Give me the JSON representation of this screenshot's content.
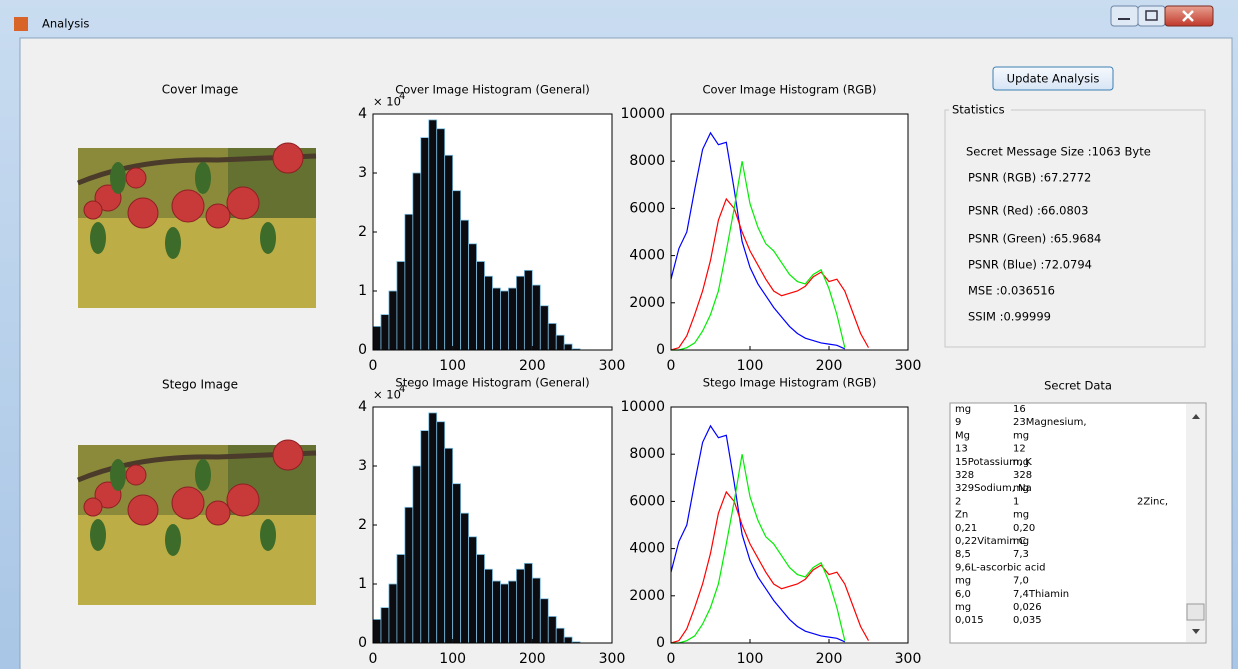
{
  "window": {
    "title": "Analysis"
  },
  "cover": {
    "label": "Cover Image"
  },
  "stego": {
    "label": "Stego Image"
  },
  "button": "Update Analysis",
  "statistics": {
    "title": "Statistics",
    "lines": [
      {
        "text": "Secret Message Size :1063 Byte",
        "color": "#000000"
      },
      {
        "text": "PSNR (RGB) :67.2772",
        "color": "#000000"
      },
      {
        "text": "PSNR (Red) :66.0803",
        "color": "#ff2020"
      },
      {
        "text": "PSNR (Green) :65.9684",
        "color": "#10a010"
      },
      {
        "text": "PSNR (Blue) :72.0794",
        "color": "#2020ff"
      },
      {
        "text": "MSE :0.036516",
        "color": "#000000"
      },
      {
        "text": "SSIM :0.99999",
        "color": "#000000"
      }
    ]
  },
  "secret_data": {
    "title": "Secret Data",
    "rows": [
      [
        "mg",
        "16"
      ],
      [
        "9",
        "23Magnesium,"
      ],
      [
        "Mg",
        "mg"
      ],
      [
        "13",
        "12"
      ],
      [
        "15Potassium, K",
        "mg"
      ],
      [
        "328",
        "328"
      ],
      [
        "329Sodium, Na",
        "mg"
      ],
      [
        "2",
        "1",
        "2Zinc,"
      ],
      [
        "Zn",
        "mg"
      ],
      [
        "0,21",
        "0,20"
      ],
      [
        "0,22Vitamin C",
        "mg"
      ],
      [
        "8,5",
        "7,3"
      ],
      [
        "9,6L-ascorbic acid"
      ],
      [
        "mg",
        "7,0"
      ],
      [
        "6,0",
        "7,4Thiamin"
      ],
      [
        "mg",
        "0,026"
      ],
      [
        "0,015",
        "0,035"
      ]
    ]
  },
  "chart_data": [
    {
      "type": "histogram",
      "title": "Cover Image Histogram (General)",
      "multiplier": "× 10",
      "exponent": "4",
      "bins": [
        0,
        10,
        20,
        30,
        40,
        50,
        60,
        70,
        80,
        90,
        100,
        110,
        120,
        130,
        140,
        150,
        160,
        170,
        180,
        190,
        200,
        210,
        220,
        230,
        240,
        250,
        260
      ],
      "values": [
        0.4,
        0.6,
        1.0,
        1.5,
        2.3,
        3.0,
        3.6,
        3.9,
        3.75,
        3.3,
        2.7,
        2.2,
        1.8,
        1.5,
        1.25,
        1.05,
        1.0,
        1.05,
        1.25,
        1.35,
        1.1,
        0.75,
        0.45,
        0.25,
        0.1,
        0.02
      ],
      "color": "#0b0b10",
      "edge_color": "#7dbde0",
      "xlim": [
        0,
        300
      ],
      "xticks": [
        0,
        100,
        200,
        300
      ],
      "ylim": [
        0,
        4
      ],
      "yticks": [
        0,
        1,
        2,
        3,
        4
      ]
    },
    {
      "type": "line",
      "title": "Cover Image Histogram (RGB)",
      "x": [
        0,
        10,
        20,
        30,
        40,
        50,
        60,
        70,
        80,
        90,
        100,
        110,
        120,
        130,
        140,
        150,
        160,
        170,
        180,
        190,
        200,
        210,
        220,
        230,
        240,
        250
      ],
      "series": [
        {
          "color": "#0000ff",
          "values": [
            3000,
            4300,
            5000,
            6800,
            8500,
            9200,
            8700,
            8800,
            6800,
            4600,
            3500,
            2800,
            2300,
            1800,
            1400,
            1000,
            700,
            500,
            400,
            300,
            250,
            200,
            50,
            null,
            null,
            null
          ]
        },
        {
          "color": "#ff0000",
          "values": [
            0,
            100,
            600,
            1500,
            2500,
            3800,
            5500,
            6400,
            6000,
            5000,
            4200,
            3600,
            3000,
            2500,
            2300,
            2400,
            2500,
            2700,
            3100,
            3300,
            2900,
            3000,
            2500,
            1600,
            700,
            100
          ]
        },
        {
          "color": "#00ee00",
          "values": [
            0,
            0,
            100,
            300,
            800,
            1500,
            2500,
            4200,
            6000,
            8000,
            6200,
            5200,
            4500,
            4200,
            3700,
            3200,
            2900,
            2800,
            3200,
            3400,
            2600,
            1500,
            100,
            null,
            null,
            null
          ]
        }
      ],
      "xlim": [
        0,
        300
      ],
      "xticks": [
        0,
        100,
        200,
        300
      ],
      "ylim": [
        0,
        10000
      ],
      "yticks": [
        0,
        2000,
        4000,
        6000,
        8000,
        10000
      ]
    },
    {
      "type": "histogram",
      "title": "Stego Image Histogram (General)",
      "multiplier": "× 10",
      "exponent": "4",
      "bins": [
        0,
        10,
        20,
        30,
        40,
        50,
        60,
        70,
        80,
        90,
        100,
        110,
        120,
        130,
        140,
        150,
        160,
        170,
        180,
        190,
        200,
        210,
        220,
        230,
        240,
        250,
        260
      ],
      "values": [
        0.4,
        0.6,
        1.0,
        1.5,
        2.3,
        3.0,
        3.6,
        3.9,
        3.75,
        3.3,
        2.7,
        2.2,
        1.8,
        1.5,
        1.25,
        1.05,
        1.0,
        1.05,
        1.25,
        1.35,
        1.1,
        0.75,
        0.45,
        0.25,
        0.1,
        0.02
      ],
      "color": "#0b0b10",
      "edge_color": "#7dbde0",
      "xlim": [
        0,
        300
      ],
      "xticks": [
        0,
        100,
        200,
        300
      ],
      "ylim": [
        0,
        4
      ],
      "yticks": [
        0,
        1,
        2,
        3,
        4
      ]
    },
    {
      "type": "line",
      "title": "Stego Image Histogram (RGB)",
      "x": [
        0,
        10,
        20,
        30,
        40,
        50,
        60,
        70,
        80,
        90,
        100,
        110,
        120,
        130,
        140,
        150,
        160,
        170,
        180,
        190,
        200,
        210,
        220,
        230,
        240,
        250
      ],
      "series": [
        {
          "color": "#0000ff",
          "values": [
            3000,
            4300,
            5000,
            6800,
            8500,
            9200,
            8700,
            8800,
            6800,
            4600,
            3500,
            2800,
            2300,
            1800,
            1400,
            1000,
            700,
            500,
            400,
            300,
            250,
            200,
            50,
            null,
            null,
            null
          ]
        },
        {
          "color": "#ff0000",
          "values": [
            0,
            100,
            600,
            1500,
            2500,
            3800,
            5500,
            6400,
            6000,
            5000,
            4200,
            3600,
            3000,
            2500,
            2300,
            2400,
            2500,
            2700,
            3100,
            3300,
            2900,
            3000,
            2500,
            1600,
            700,
            100
          ]
        },
        {
          "color": "#00ee00",
          "values": [
            0,
            0,
            100,
            300,
            800,
            1500,
            2500,
            4200,
            6000,
            8000,
            6200,
            5200,
            4500,
            4200,
            3700,
            3200,
            2900,
            2800,
            3200,
            3400,
            2600,
            1500,
            100,
            null,
            null,
            null
          ]
        }
      ],
      "xlim": [
        0,
        300
      ],
      "xticks": [
        0,
        100,
        200,
        300
      ],
      "ylim": [
        0,
        10000
      ],
      "yticks": [
        0,
        2000,
        4000,
        6000,
        8000,
        10000
      ]
    }
  ]
}
